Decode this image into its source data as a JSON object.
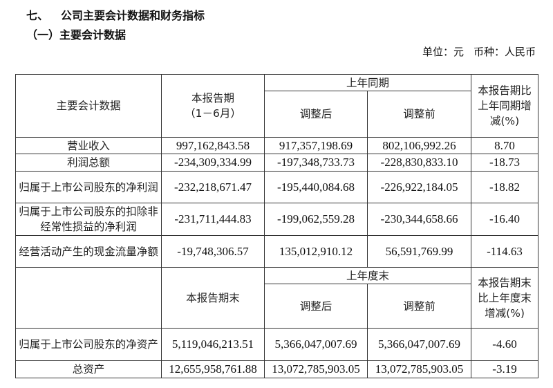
{
  "section": {
    "number": "七、",
    "title": "公司主要会计数据和财务指标"
  },
  "subsection": "（一）主要会计数据",
  "unit": {
    "unit_label": "单位：元",
    "currency_label": "币种：人民币"
  },
  "table1": {
    "headers": {
      "item": "主要会计数据",
      "current_line1": "本报告期",
      "current_line2": "（1－6月）",
      "prior_group": "上年同期",
      "adjusted_after": "调整后",
      "adjusted_before": "调整前",
      "change": "本报告期比上年同期增减(%)"
    },
    "rows": [
      {
        "item": "营业收入",
        "current": "997,162,843.58",
        "after": "917,357,198.69",
        "before": "802,106,992.26",
        "change": "8.70"
      },
      {
        "item": "利润总额",
        "current": "-234,309,334.99",
        "after": "-197,348,733.73",
        "before": "-228,830,833.10",
        "change": "-18.73"
      },
      {
        "item": "归属于上市公司股东的净利润",
        "current": "-232,218,671.47",
        "after": "-195,440,084.68",
        "before": "-226,922,184.05",
        "change": "-18.82"
      },
      {
        "item": "归属于上市公司股东的扣除非经常性损益的净利润",
        "current": "-231,711,444.83",
        "after": "-199,062,559.28",
        "before": "-230,344,658.66",
        "change": "-16.40"
      },
      {
        "item": "经营活动产生的现金流量净额",
        "current": "-19,748,306.57",
        "after": "135,012,910.12",
        "before": "56,591,769.99",
        "change": "-114.63"
      }
    ]
  },
  "table2": {
    "headers": {
      "current": "本报告期末",
      "prior_group": "上年度末",
      "adjusted_after": "调整后",
      "adjusted_before": "调整前",
      "change": "本报告期末比上年度末增减(%)"
    },
    "rows": [
      {
        "item": "归属于上市公司股东的净资产",
        "current": "5,119,046,213.51",
        "after": "5,366,047,007.69",
        "before": "5,366,047,007.69",
        "change": "-4.60"
      },
      {
        "item": "总资产",
        "current": "12,655,958,761.88",
        "after": "13,072,785,903.05",
        "before": "13,072,785,903.05",
        "change": "-3.19"
      }
    ]
  }
}
